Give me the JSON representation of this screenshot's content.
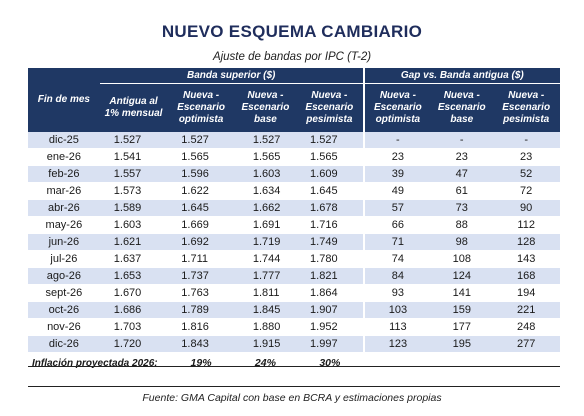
{
  "title": "NUEVO ESQUEMA CAMBIARIO",
  "subtitle": "Ajuste de bandas por IPC (T-2)",
  "headers": {
    "month": "Fin de mes",
    "group_upper": "Banda superior ($)",
    "group_gap": "Gap vs. Banda antigua ($)",
    "old": "Antigua al 1% mensual",
    "opt": "Nueva - Escenario optimista",
    "base": "Nueva - Escenario base",
    "pes": "Nueva - Escenario pesimista",
    "gap_opt": "Nueva - Escenario optimista",
    "gap_base": "Nueva - Escenario base",
    "gap_pes": "Nueva - Escenario pesimista"
  },
  "rows": [
    {
      "month": "dic-25",
      "old": "1.527",
      "opt": "1.527",
      "base": "1.527",
      "pes": "1.527",
      "g_opt": "-",
      "g_base": "-",
      "g_pes": "-"
    },
    {
      "month": "ene-26",
      "old": "1.541",
      "opt": "1.565",
      "base": "1.565",
      "pes": "1.565",
      "g_opt": "23",
      "g_base": "23",
      "g_pes": "23"
    },
    {
      "month": "feb-26",
      "old": "1.557",
      "opt": "1.596",
      "base": "1.603",
      "pes": "1.609",
      "g_opt": "39",
      "g_base": "47",
      "g_pes": "52"
    },
    {
      "month": "mar-26",
      "old": "1.573",
      "opt": "1.622",
      "base": "1.634",
      "pes": "1.645",
      "g_opt": "49",
      "g_base": "61",
      "g_pes": "72"
    },
    {
      "month": "abr-26",
      "old": "1.589",
      "opt": "1.645",
      "base": "1.662",
      "pes": "1.678",
      "g_opt": "57",
      "g_base": "73",
      "g_pes": "90"
    },
    {
      "month": "may-26",
      "old": "1.603",
      "opt": "1.669",
      "base": "1.691",
      "pes": "1.716",
      "g_opt": "66",
      "g_base": "88",
      "g_pes": "112"
    },
    {
      "month": "jun-26",
      "old": "1.621",
      "opt": "1.692",
      "base": "1.719",
      "pes": "1.749",
      "g_opt": "71",
      "g_base": "98",
      "g_pes": "128"
    },
    {
      "month": "jul-26",
      "old": "1.637",
      "opt": "1.711",
      "base": "1.744",
      "pes": "1.780",
      "g_opt": "74",
      "g_base": "108",
      "g_pes": "143"
    },
    {
      "month": "ago-26",
      "old": "1.653",
      "opt": "1.737",
      "base": "1.777",
      "pes": "1.821",
      "g_opt": "84",
      "g_base": "124",
      "g_pes": "168"
    },
    {
      "month": "sept-26",
      "old": "1.670",
      "opt": "1.763",
      "base": "1.811",
      "pes": "1.864",
      "g_opt": "93",
      "g_base": "141",
      "g_pes": "194"
    },
    {
      "month": "oct-26",
      "old": "1.686",
      "opt": "1.789",
      "base": "1.845",
      "pes": "1.907",
      "g_opt": "103",
      "g_base": "159",
      "g_pes": "221"
    },
    {
      "month": "nov-26",
      "old": "1.703",
      "opt": "1.816",
      "base": "1.880",
      "pes": "1.952",
      "g_opt": "113",
      "g_base": "177",
      "g_pes": "248"
    },
    {
      "month": "dic-26",
      "old": "1.720",
      "opt": "1.843",
      "base": "1.915",
      "pes": "1.997",
      "g_opt": "123",
      "g_base": "195",
      "g_pes": "277"
    }
  ],
  "inflation": {
    "label": "Inflación proyectada 2026:",
    "opt": "19%",
    "base": "24%",
    "pes": "30%"
  },
  "source": "Fuente: GMA Capital con base en BCRA y estimaciones propias",
  "colors": {
    "header_bg": "#1f3864",
    "stripe": "#d9e1f2",
    "title": "#1f2d5c"
  }
}
